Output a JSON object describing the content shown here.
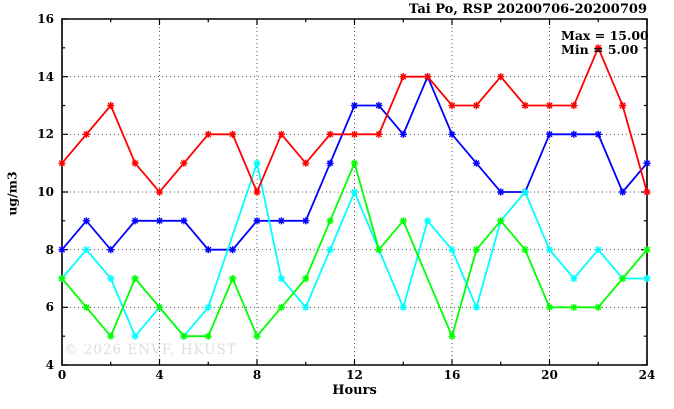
{
  "window": {
    "title": "Tai Po, RSP 20200706-20200709"
  },
  "annotations": {
    "max_label": "Max = 15.00",
    "min_label": "Min = 5.00"
  },
  "watermark": "© 2026 ENVF, HKUST",
  "chart_data": {
    "type": "line",
    "title": "Tai Po, RSP 20200706-20200709",
    "xlabel": "Hours",
    "ylabel": "ug/m3",
    "xlim": [
      0,
      24
    ],
    "ylim": [
      4,
      16
    ],
    "grid": true,
    "x_major_ticks": [
      0,
      4,
      8,
      12,
      16,
      20,
      24
    ],
    "x_minor_ticks": [
      2,
      6,
      10,
      14,
      18,
      22
    ],
    "y_major_ticks": [
      4,
      6,
      8,
      10,
      12,
      14,
      16
    ],
    "y_minor_ticks": [
      5,
      7,
      9,
      11,
      13,
      15
    ],
    "x_gridlines": [
      4,
      8,
      12,
      16,
      20
    ],
    "y_gridlines": [
      6,
      8,
      10,
      12,
      14
    ],
    "x": [
      0,
      1,
      2,
      3,
      4,
      5,
      6,
      7,
      8,
      9,
      10,
      11,
      12,
      13,
      14,
      15,
      16,
      17,
      18,
      19,
      20,
      21,
      22,
      23,
      24
    ],
    "series": [
      {
        "name": "blue",
        "color": "#0000ff",
        "values": [
          8,
          9,
          8,
          9,
          9,
          9,
          8,
          8,
          9,
          9,
          9,
          11,
          13,
          13,
          12,
          14,
          12,
          11,
          10,
          10,
          12,
          12,
          12,
          10,
          11
        ]
      },
      {
        "name": "cyan",
        "color": "#00ffff",
        "values": [
          7,
          8,
          7,
          5,
          6,
          5,
          6,
          null,
          11,
          7,
          6,
          8,
          10,
          8,
          6,
          9,
          8,
          6,
          9,
          10,
          8,
          7,
          8,
          7,
          7
        ]
      },
      {
        "name": "green",
        "color": "#00ff00",
        "values": [
          7,
          6,
          5,
          7,
          6,
          5,
          5,
          7,
          5,
          6,
          7,
          9,
          11,
          8,
          9,
          null,
          5,
          8,
          9,
          8,
          6,
          6,
          6,
          7,
          8
        ]
      },
      {
        "name": "red",
        "color": "#ff0000",
        "values": [
          11,
          12,
          13,
          11,
          10,
          11,
          12,
          12,
          10,
          12,
          11,
          12,
          12,
          12,
          14,
          14,
          13,
          13,
          14,
          13,
          13,
          13,
          15,
          13,
          10
        ]
      }
    ],
    "annotations": [
      "Max = 15.00",
      "Min = 5.00"
    ],
    "legend_position": "none",
    "frame_color": "#000000",
    "grid_color": "#555555"
  }
}
